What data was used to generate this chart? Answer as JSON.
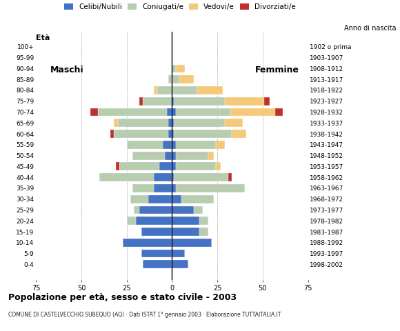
{
  "age_groups": [
    "0-4",
    "5-9",
    "10-14",
    "15-19",
    "20-24",
    "25-29",
    "30-34",
    "35-39",
    "40-44",
    "45-49",
    "50-54",
    "55-59",
    "60-64",
    "65-69",
    "70-74",
    "75-79",
    "80-84",
    "85-89",
    "90-94",
    "95-99",
    "100+"
  ],
  "birth_years": [
    "1998-2002",
    "1993-1997",
    "1988-1992",
    "1983-1987",
    "1978-1982",
    "1973-1977",
    "1968-1972",
    "1963-1967",
    "1958-1962",
    "1953-1957",
    "1948-1952",
    "1943-1947",
    "1938-1942",
    "1933-1937",
    "1928-1932",
    "1923-1927",
    "1918-1922",
    "1913-1917",
    "1908-1912",
    "1903-1907",
    "1902 o prima"
  ],
  "males": {
    "celibi": [
      16,
      17,
      27,
      17,
      20,
      18,
      13,
      10,
      10,
      7,
      4,
      5,
      2,
      2,
      3,
      0,
      0,
      0,
      0,
      0,
      0
    ],
    "coniugati": [
      0,
      0,
      0,
      0,
      5,
      3,
      10,
      12,
      30,
      22,
      18,
      20,
      30,
      28,
      38,
      16,
      8,
      2,
      0,
      0,
      0
    ],
    "vedovi": [
      0,
      0,
      0,
      0,
      0,
      0,
      0,
      0,
      0,
      0,
      0,
      0,
      0,
      2,
      0,
      0,
      2,
      0,
      0,
      0,
      0
    ],
    "divorziati": [
      0,
      0,
      0,
      0,
      0,
      0,
      0,
      0,
      0,
      2,
      0,
      0,
      2,
      0,
      4,
      2,
      0,
      0,
      0,
      0,
      0
    ]
  },
  "females": {
    "nubili": [
      9,
      7,
      22,
      15,
      15,
      12,
      5,
      2,
      1,
      2,
      2,
      2,
      1,
      1,
      2,
      1,
      0,
      0,
      0,
      0,
      0
    ],
    "coniugate": [
      0,
      0,
      0,
      5,
      5,
      5,
      18,
      38,
      30,
      22,
      18,
      22,
      32,
      28,
      30,
      28,
      14,
      4,
      2,
      0,
      0
    ],
    "vedove": [
      0,
      0,
      0,
      0,
      0,
      0,
      0,
      0,
      0,
      3,
      3,
      5,
      8,
      10,
      25,
      22,
      14,
      8,
      5,
      0,
      0
    ],
    "divorziate": [
      0,
      0,
      0,
      0,
      0,
      0,
      0,
      0,
      2,
      0,
      0,
      0,
      0,
      0,
      4,
      3,
      0,
      0,
      0,
      0,
      0
    ]
  },
  "colors": {
    "celibi_nubili": "#4472C4",
    "coniugati": "#B8CCB0",
    "vedovi": "#F5C97A",
    "divorziati": "#C0302A"
  },
  "title": "Popolazione per età, sesso e stato civile - 2003",
  "subtitle": "COMUNE DI CASTELVECCHIO SUBEQUO (AQ) · Dati ISTAT 1° gennaio 2003 · Elaborazione TUTTAITALIA.IT",
  "eta_label": "Età",
  "anno_label": "Anno di nascita",
  "maschi_label": "Maschi",
  "femmine_label": "Femmine",
  "legend_labels": [
    "Celibi/Nubili",
    "Coniugati/e",
    "Vedovi/e",
    "Divorziati/e"
  ],
  "xtick_labels": [
    "75",
    "50",
    "25",
    "0",
    "25",
    "50",
    "75"
  ],
  "xlim": 75,
  "background_color": "#ffffff"
}
